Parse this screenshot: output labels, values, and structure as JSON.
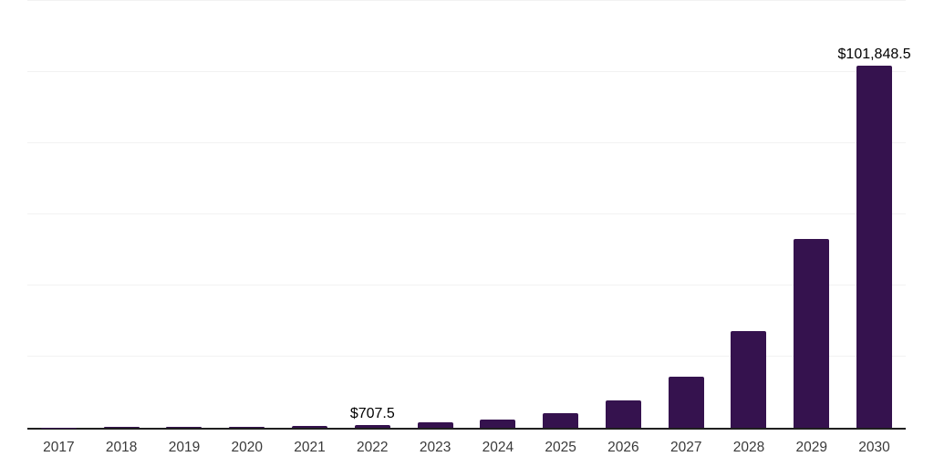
{
  "chart_data": {
    "type": "bar",
    "title": "",
    "xlabel": "",
    "ylabel": "",
    "categories": [
      "2017",
      "2018",
      "2019",
      "2020",
      "2021",
      "2022",
      "2023",
      "2024",
      "2025",
      "2026",
      "2027",
      "2028",
      "2029",
      "2030"
    ],
    "values": [
      115,
      165,
      240,
      350,
      490,
      707.5,
      1450,
      2400,
      4100,
      7600,
      14300,
      27200,
      53000,
      101848.5
    ],
    "point_labels": {
      "2022": "$707.5",
      "2030": "$101,848.5"
    },
    "ylim": [
      0,
      120000
    ],
    "gridline_interval": 20000,
    "grid": true,
    "legend": false,
    "y_tick_labels_visible": false
  },
  "colors": {
    "bar": "#35124e",
    "gridline": "#f2f2f2",
    "axis_line": "#1f1f1f",
    "tick_label": "#3a3a3a",
    "value_label": "#000000",
    "background": "#ffffff"
  }
}
